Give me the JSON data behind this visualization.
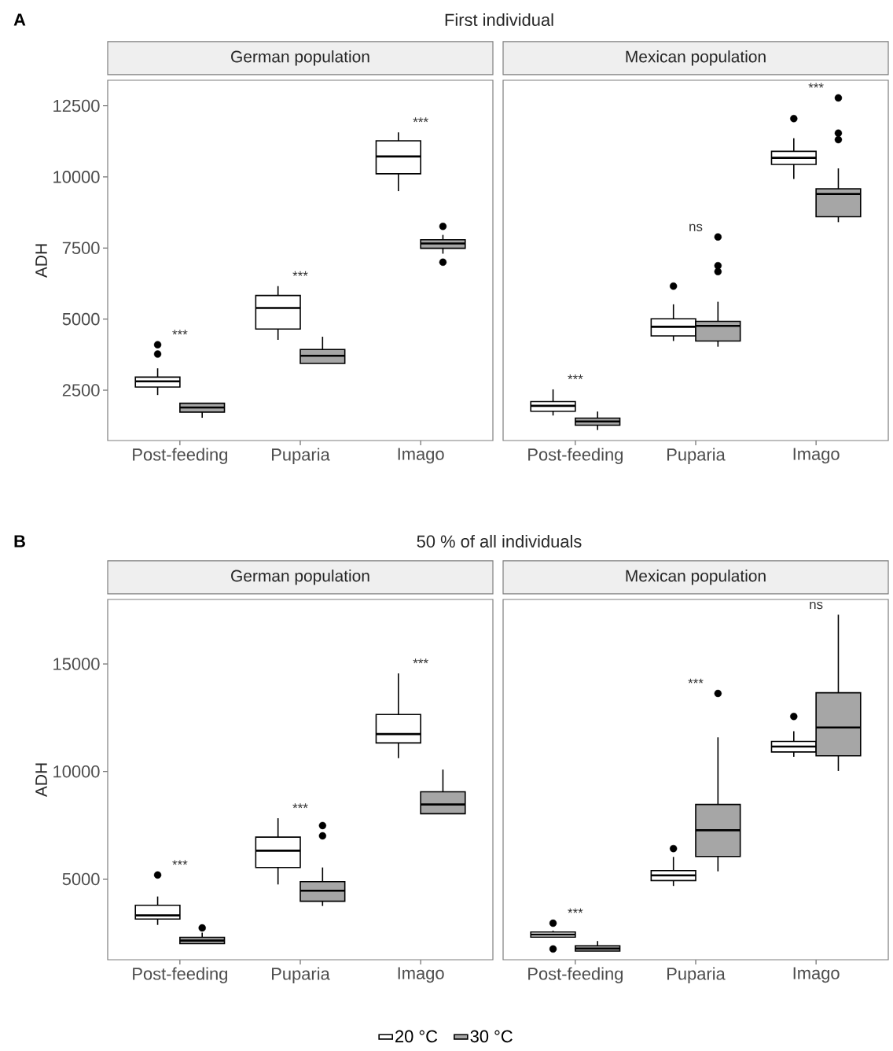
{
  "chart_data": [
    {
      "type": "box",
      "title": "German population",
      "ylabel": "ADH",
      "categories": [
        "Post-feeding",
        "Puparia",
        "Imago"
      ],
      "ylim": [
        730,
        13400
      ],
      "yticks": [
        2500,
        5000,
        7500,
        10000,
        12500
      ],
      "grid": false,
      "legend": false,
      "annotations": [
        "A",
        "First individual",
        "***",
        "***",
        "***"
      ],
      "series": [
        {
          "color": "#ffffff",
          "boxes": [
            {
              "low": 2330,
              "q1": 2610,
              "median": 2810,
              "q3": 2960,
              "high": 3270,
              "outliers": [
                3770,
                4100
              ]
            },
            {
              "low": 4270,
              "q1": 4650,
              "median": 5390,
              "q3": 5830,
              "high": 6160
            },
            {
              "low": 9500,
              "q1": 10110,
              "median": 10720,
              "q3": 11270,
              "high": 11570
            }
          ]
        },
        {
          "color": "#a6a6a6",
          "boxes": [
            {
              "low": 1530,
              "q1": 1730,
              "median": 1890,
              "q3": 2040,
              "high": 2040
            },
            {
              "low": 3440,
              "q1": 3440,
              "median": 3710,
              "q3": 3930,
              "high": 4380
            },
            {
              "low": 7300,
              "q1": 7490,
              "median": 7660,
              "q3": 7790,
              "high": 7960,
              "outliers": [
                7000,
                8260
              ]
            }
          ]
        }
      ]
    },
    {
      "type": "box",
      "title": "Mexican population",
      "categories": [
        "Post-feeding",
        "Puparia",
        "Imago"
      ],
      "ylim": [
        730,
        13400
      ],
      "yticks": [
        2500,
        5000,
        7500,
        10000,
        12500
      ],
      "tick_labels": "x",
      "grid": false,
      "legend": false,
      "annotations": [
        "***",
        "ns",
        "***"
      ],
      "series": [
        {
          "color": "#ffffff",
          "boxes": [
            {
              "low": 1610,
              "q1": 1760,
              "median": 1950,
              "q3": 2100,
              "high": 2530
            },
            {
              "low": 4230,
              "q1": 4410,
              "median": 4730,
              "q3": 5010,
              "high": 5520,
              "outliers": [
                6160
              ]
            },
            {
              "low": 9930,
              "q1": 10440,
              "median": 10670,
              "q3": 10900,
              "high": 11360,
              "outliers": [
                12050
              ]
            }
          ]
        },
        {
          "color": "#a6a6a6",
          "boxes": [
            {
              "low": 1100,
              "q1": 1270,
              "median": 1400,
              "q3": 1520,
              "high": 1750
            },
            {
              "low": 4030,
              "q1": 4230,
              "median": 4760,
              "q3": 4920,
              "high": 5610,
              "outliers": [
                6670,
                6880,
                7890
              ]
            },
            {
              "low": 8410,
              "q1": 8600,
              "median": 9400,
              "q3": 9580,
              "high": 10300,
              "outliers": [
                11310,
                11540,
                12780
              ]
            }
          ]
        }
      ]
    },
    {
      "type": "box",
      "title": "German population",
      "ylabel": "ADH",
      "categories": [
        "Post-feeding",
        "Puparia",
        "Imago"
      ],
      "ylim": [
        1250,
        18000
      ],
      "yticks": [
        5000,
        10000,
        15000
      ],
      "grid": false,
      "legend": false,
      "annotations": [
        "B",
        "50 % of all individuals",
        "***",
        "***",
        "***"
      ],
      "series": [
        {
          "color": "#ffffff",
          "boxes": [
            {
              "low": 2870,
              "q1": 3140,
              "median": 3310,
              "q3": 3780,
              "high": 4190,
              "outliers": [
                5190
              ]
            },
            {
              "low": 4750,
              "q1": 5540,
              "median": 6320,
              "q3": 6950,
              "high": 7830
            },
            {
              "low": 10620,
              "q1": 11330,
              "median": 11740,
              "q3": 12650,
              "high": 14560
            }
          ]
        },
        {
          "color": "#a6a6a6",
          "boxes": [
            {
              "low": 2000,
              "q1": 2000,
              "median": 2140,
              "q3": 2290,
              "high": 2510,
              "outliers": [
                2730
              ]
            },
            {
              "low": 3750,
              "q1": 3970,
              "median": 4460,
              "q3": 4880,
              "high": 5540,
              "outliers": [
                7010,
                7490
              ]
            },
            {
              "low": 8040,
              "q1": 8040,
              "median": 8470,
              "q3": 9060,
              "high": 10090
            }
          ]
        }
      ]
    },
    {
      "type": "box",
      "title": "Mexican population",
      "categories": [
        "Post-feeding",
        "Puparia",
        "Imago"
      ],
      "ylim": [
        1250,
        18000
      ],
      "yticks": [
        5000,
        10000,
        15000
      ],
      "tick_labels": "x",
      "grid": false,
      "legend": "bottom",
      "annotations": [
        "***",
        "***",
        "ns"
      ],
      "series": [
        {
          "name": "20 °C",
          "color": "#ffffff",
          "boxes": [
            {
              "low": 2300,
              "q1": 2300,
              "median": 2420,
              "q3": 2540,
              "high": 2600,
              "outliers": [
                1750,
                2950
              ]
            },
            {
              "low": 4680,
              "q1": 4930,
              "median": 5170,
              "q3": 5390,
              "high": 6030,
              "outliers": [
                6420
              ]
            },
            {
              "low": 10690,
              "q1": 10910,
              "median": 11160,
              "q3": 11400,
              "high": 11870,
              "outliers": [
                12560
              ]
            }
          ]
        },
        {
          "name": "30 °C",
          "color": "#a6a6a6",
          "boxes": [
            {
              "low": 1650,
              "q1": 1650,
              "median": 1770,
              "q3": 1900,
              "high": 2120
            },
            {
              "low": 5360,
              "q1": 6050,
              "median": 7270,
              "q3": 8470,
              "high": 11590,
              "outliers": [
                13630
              ]
            },
            {
              "low": 10030,
              "q1": 10730,
              "median": 12050,
              "q3": 13660,
              "high": 17290
            }
          ]
        }
      ]
    }
  ]
}
